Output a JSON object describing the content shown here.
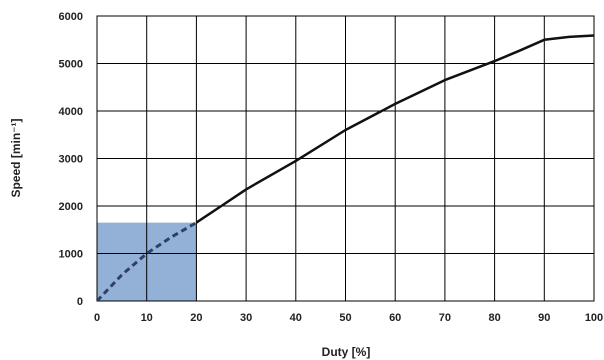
{
  "chart_data": {
    "type": "line",
    "title": "",
    "xlabel": "Duty [%]",
    "ylabel": "Speed [min⁻¹]",
    "xlim": [
      0,
      100
    ],
    "ylim": [
      0,
      6000
    ],
    "xticks": [
      0,
      10,
      20,
      30,
      40,
      50,
      60,
      70,
      80,
      90,
      100
    ],
    "yticks": [
      0,
      1000,
      2000,
      3000,
      4000,
      5000,
      6000
    ],
    "grid": true,
    "series": [
      {
        "style": "dashed",
        "color": "#2f3f66",
        "x": [
          0,
          5,
          10,
          15,
          20
        ],
        "y": [
          0,
          550,
          1000,
          1350,
          1650
        ]
      },
      {
        "style": "solid",
        "color": "#111111",
        "x": [
          20,
          25,
          30,
          40,
          50,
          60,
          70,
          80,
          85,
          90,
          95,
          100
        ],
        "y": [
          1650,
          2000,
          2350,
          2950,
          3600,
          4150,
          4650,
          5050,
          5270,
          5500,
          5560,
          5590
        ]
      }
    ],
    "shaded_region": {
      "x": [
        0,
        20
      ],
      "y": [
        0,
        1650
      ],
      "color": "#6f95c8"
    }
  }
}
